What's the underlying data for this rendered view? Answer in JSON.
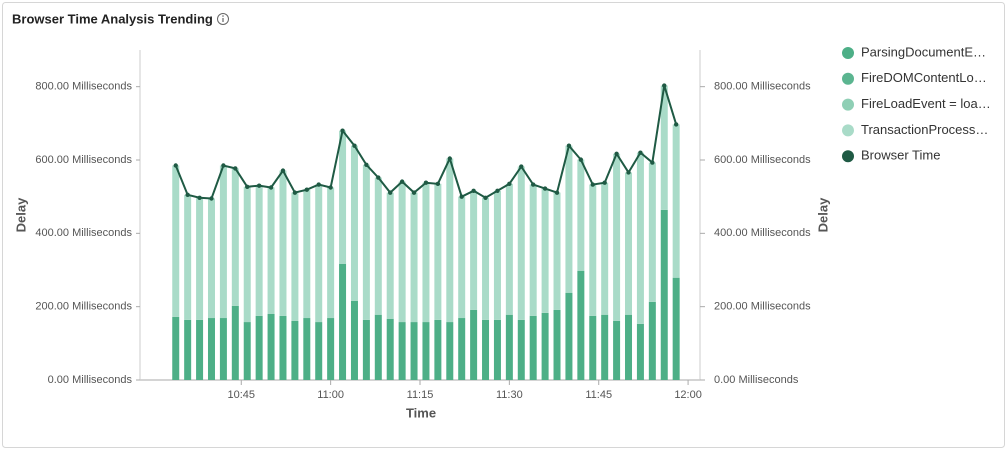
{
  "chart_data": {
    "type": "stacked_bar_line",
    "title": "Browser Time Analysis Trending",
    "xlabel": "Time",
    "ylabel": "Delay",
    "y2label": "Delay",
    "x": [
      "10:34",
      "10:36",
      "10:38",
      "10:40",
      "10:42",
      "10:44",
      "10:46",
      "10:48",
      "10:50",
      "10:52",
      "10:54",
      "10:56",
      "10:58",
      "11:00",
      "11:02",
      "11:04",
      "11:06",
      "11:08",
      "11:10",
      "11:12",
      "11:14",
      "11:16",
      "11:18",
      "11:20",
      "11:22",
      "11:24",
      "11:26",
      "11:28",
      "11:30",
      "11:32",
      "11:34",
      "11:36",
      "11:38",
      "11:40",
      "11:42",
      "11:44",
      "11:46",
      "11:48",
      "11:50",
      "11:52",
      "11:54",
      "11:56",
      "11:58"
    ],
    "xlim": [
      "10:28",
      "12:02"
    ],
    "xticks": [
      "10:45",
      "11:00",
      "11:15",
      "11:30",
      "11:45",
      "12:00"
    ],
    "ylim": [
      0,
      900
    ],
    "yticks": [
      {
        "value": 0,
        "label": "0.00 Milliseconds"
      },
      {
        "value": 200,
        "label": "200.00 Milliseconds"
      },
      {
        "value": 400,
        "label": "400.00 Milliseconds"
      },
      {
        "value": 600,
        "label": "600.00 Milliseconds"
      },
      {
        "value": 800,
        "label": "800.00 Milliseconds"
      }
    ],
    "y2lim": [
      0,
      900
    ],
    "y2ticks": [
      {
        "value": 0,
        "label": "0.00 Milliseconds"
      },
      {
        "value": 200,
        "label": "200.00 Milliseconds"
      },
      {
        "value": 400,
        "label": "400.00 Milliseconds"
      },
      {
        "value": 600,
        "label": "600.00 Milliseconds"
      },
      {
        "value": 800,
        "label": "800.00 Milliseconds"
      }
    ],
    "series": [
      {
        "name": "ParsingDocumentE…",
        "color": "#4daf87",
        "kind": "bar",
        "values": [
          172,
          164,
          164,
          169,
          169,
          202,
          158,
          175,
          180,
          175,
          161,
          169,
          158,
          169,
          317,
          216,
          164,
          178,
          167,
          158,
          158,
          158,
          164,
          158,
          169,
          191,
          164,
          164,
          178,
          164,
          175,
          183,
          191,
          238,
          298,
          175,
          178,
          161,
          178,
          153,
          213,
          464,
          279
        ]
      },
      {
        "name": "FireDOMContentLo…",
        "color": "#5bb590",
        "kind": "bar",
        "values": [
          0,
          0,
          0,
          0,
          0,
          0,
          0,
          0,
          0,
          0,
          0,
          0,
          0,
          0,
          0,
          0,
          0,
          0,
          0,
          0,
          0,
          0,
          0,
          0,
          0,
          0,
          0,
          0,
          0,
          0,
          0,
          0,
          0,
          0,
          0,
          0,
          0,
          0,
          0,
          0,
          0,
          0,
          0
        ]
      },
      {
        "name": "FireLoadEvent = loa…",
        "color": "#8fcfb5",
        "kind": "bar",
        "values": [
          0,
          0,
          0,
          0,
          0,
          0,
          0,
          0,
          0,
          0,
          0,
          0,
          0,
          0,
          0,
          0,
          0,
          0,
          0,
          0,
          0,
          0,
          0,
          0,
          0,
          0,
          0,
          0,
          0,
          0,
          0,
          0,
          0,
          0,
          0,
          0,
          0,
          0,
          0,
          0,
          0,
          0,
          0
        ]
      },
      {
        "name": "TransactionProcess…",
        "color": "#a9dbc8",
        "kind": "bar",
        "values": [
          413,
          341,
          333,
          326,
          416,
          375,
          369,
          355,
          345,
          396,
          350,
          350,
          375,
          356,
          363,
          423,
          423,
          374,
          344,
          383,
          353,
          380,
          371,
          446,
          331,
          325,
          333,
          352,
          357,
          418,
          358,
          339,
          320,
          401,
          303,
          358,
          360,
          456,
          388,
          467,
          380,
          339,
          418
        ]
      },
      {
        "name": "Browser Time",
        "color": "#1f5a44",
        "kind": "line",
        "axis": "y2",
        "values": [
          585,
          505,
          497,
          495,
          585,
          577,
          527,
          530,
          525,
          571,
          511,
          519,
          533,
          525,
          680,
          639,
          587,
          552,
          511,
          541,
          511,
          538,
          535,
          604,
          500,
          516,
          497,
          516,
          535,
          582,
          533,
          522,
          511,
          639,
          601,
          533,
          538,
          617,
          566,
          620,
          593,
          803,
          697
        ]
      }
    ]
  }
}
